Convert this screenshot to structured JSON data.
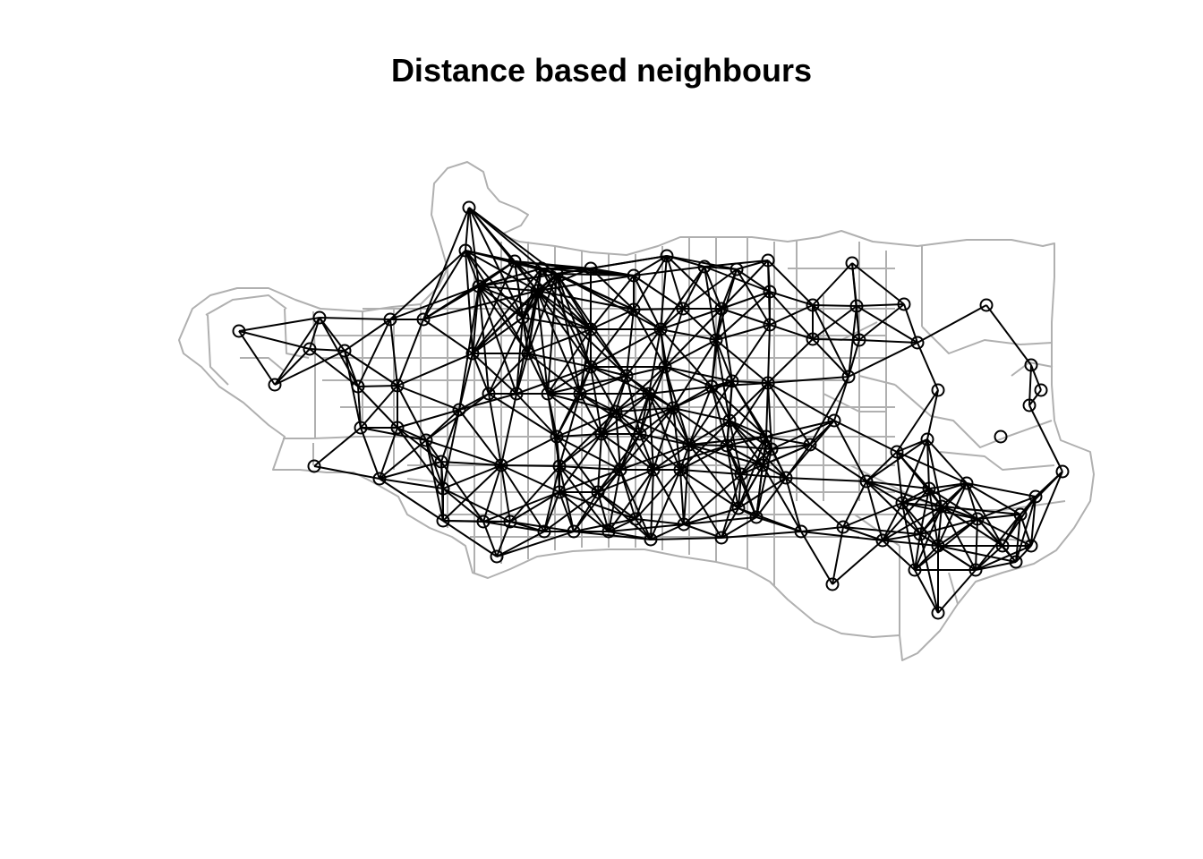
{
  "title": "Distance based neighbours",
  "colors": {
    "background": "#ffffff",
    "boundary": "#b0b0b0",
    "edge": "#000000",
    "node": "#000000"
  },
  "legend": null,
  "graph": {
    "node_marker": "open-circle",
    "boundary_style": "grey polygon outlines (census tracts)",
    "isolated_nodes": 1
  }
}
